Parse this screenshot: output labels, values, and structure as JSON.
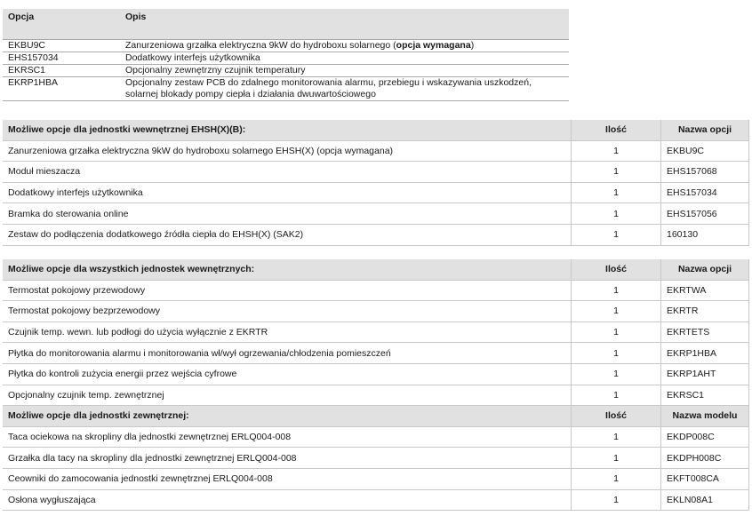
{
  "options_table": {
    "headers": {
      "option": "Opcja",
      "description": "Opis"
    },
    "rows": [
      {
        "option": "EKBU9C",
        "description": "Zanurzeniowa grzałka elektryczna 9kW do hydroboxu solarnego (",
        "bold": "opcja wymagana",
        "after": ")"
      },
      {
        "option": "EHS157034",
        "description": "Dodatkowy interfejs użytkownika"
      },
      {
        "option": "EKRSC1",
        "description": "Opcjonalny zewnętrzny czujnik temperatury"
      },
      {
        "option": "EKRP1HBA",
        "description": "Opcjonalny zestaw PCB do zdalnego monitorowania alarmu, przebiegu i wskazywania uszkodzeń, solarnej blokady pompy ciepła i działania dwuwartościowego"
      }
    ]
  },
  "sections": [
    {
      "title": "Możliwe opcje dla jednostki wewnętrznej EHSH(X)(B):",
      "qty_header": "Ilość",
      "name_header": "Nazwa opcji",
      "rows": [
        {
          "desc": "Zanurzeniowa grzałka elektryczna 9kW do hydroboxu solarnego EHSH(X) (opcja wymagana)",
          "qty": "1",
          "name": "EKBU9C"
        },
        {
          "desc": "Moduł mieszacza",
          "qty": "1",
          "name": "EHS157068"
        },
        {
          "desc": "Dodatkowy interfejs użytkownika",
          "qty": "1",
          "name": "EHS157034"
        },
        {
          "desc": "Bramka do sterowania online",
          "qty": "1",
          "name": "EHS157056"
        },
        {
          "desc": "Zestaw do podłączenia dodatkowego źródła ciepła do EHSH(X) (SAK2)",
          "qty": "1",
          "name": "160130"
        }
      ]
    },
    {
      "title": "Możliwe opcje dla wszystkich jednostek wewnętrznych:",
      "qty_header": "Ilość",
      "name_header": "Nazwa opcji",
      "rows": [
        {
          "desc": "Termostat pokojowy przewodowy",
          "qty": "1",
          "name": "EKRTWA"
        },
        {
          "desc": "Termostat pokojowy bezprzewodowy",
          "qty": "1",
          "name": "EKRTR"
        },
        {
          "desc": "Czujnik temp. wewn. lub podłogi do użycia wyłącznie z EKRTR",
          "qty": "1",
          "name": "EKRTETS"
        },
        {
          "desc": "Płytka do monitorowania alarmu i monitorowania wł/wył ogrzewania/chłodzenia pomieszczeń",
          "qty": "1",
          "name": "EKRP1HBA"
        },
        {
          "desc": "Płytka do kontroli zużycia energii przez wejścia cyfrowe",
          "qty": "1",
          "name": "EKRP1AHT"
        },
        {
          "desc": "Opcjonalny czujnik temp. zewnętrznej",
          "qty": "1",
          "name": "EKRSC1"
        }
      ]
    },
    {
      "title": "Możliwe opcje dla jednostki zewnętrznej:",
      "qty_header": "Ilość",
      "name_header": "Nazwa modelu",
      "rows": [
        {
          "desc": "Taca ociekowa na skropliny dla jednostki zewnętrznej ERLQ004-008",
          "qty": "1",
          "name": "EKDP008C"
        },
        {
          "desc": "Grzałka dla tacy na skropliny dla jednostki zewnętrznej ERLQ004-008",
          "qty": "1",
          "name": "EKDPH008C"
        },
        {
          "desc": "Ceowniki do zamocowania jednostki zewnętrznej ERLQ004-008",
          "qty": "1",
          "name": "EKFT008CA"
        },
        {
          "desc": "Osłona wygłuszająca",
          "qty": "1",
          "name": "EKLN08A1"
        }
      ]
    }
  ]
}
